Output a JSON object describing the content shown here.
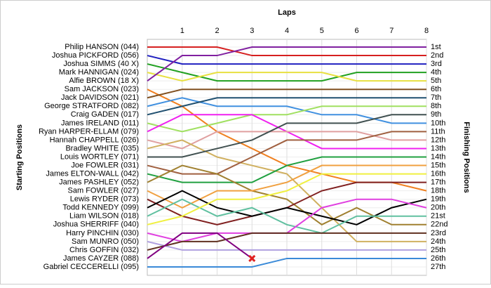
{
  "chart_data": {
    "type": "lap",
    "title": "Laps",
    "y_label_left": "Starting Positions",
    "y_label_right": "Finishing Positions",
    "xlim": [
      0,
      8
    ],
    "xticks": [
      1,
      2,
      3,
      4,
      5,
      6,
      7,
      8
    ],
    "ylim": [
      1,
      27
    ],
    "yticks": [
      1,
      2,
      3,
      4,
      5,
      6,
      7,
      8,
      9,
      10,
      11,
      12,
      13,
      14,
      15,
      16,
      17,
      18,
      19,
      20,
      21,
      22,
      23,
      24,
      25,
      26,
      27
    ],
    "grid": true,
    "finish_labels": [
      "1st",
      "2nd",
      "3rd",
      "4th",
      "5th",
      "6th",
      "7th",
      "8th",
      "9th",
      "10th",
      "11th",
      "12th",
      "13th",
      "14th",
      "15th",
      "16th",
      "17th",
      "18th",
      "19th",
      "20th",
      "21st",
      "22nd",
      "23rd",
      "24th",
      "25th",
      "26th",
      "27th"
    ],
    "series": [
      {
        "name": "Philip HANSON (044)",
        "color": "#d62020",
        "values": [
          1,
          1,
          1,
          2,
          2,
          2,
          2,
          2,
          2
        ]
      },
      {
        "name": "Joshua PICKFORD (056)",
        "color": "#2020c0",
        "values": [
          2,
          3,
          3,
          3,
          3,
          3,
          3,
          3,
          3
        ]
      },
      {
        "name": "Joshua SIMMS (40 X)",
        "color": "#20a020",
        "values": [
          3,
          4,
          5,
          5,
          5,
          5,
          4,
          4,
          4
        ]
      },
      {
        "name": "Mark HANNIGAN (024)",
        "color": "#e8e040",
        "values": [
          4,
          5,
          4,
          4,
          4,
          4,
          5,
          5,
          5
        ]
      },
      {
        "name": "Alfie BROWN (18 X)",
        "color": "#8020a0",
        "values": [
          5,
          2,
          2,
          1,
          1,
          1,
          1,
          1,
          1
        ]
      },
      {
        "name": "Sam JACKSON (023)",
        "color": "#f08020",
        "values": [
          6,
          8,
          11,
          13,
          15,
          16,
          17,
          17,
          18
        ]
      },
      {
        "name": "Jack DAVIDSON (021)",
        "color": "#805020",
        "values": [
          7,
          6,
          6,
          6,
          6,
          6,
          6,
          6,
          6
        ]
      },
      {
        "name": "George STRATFORD (082)",
        "color": "#4090e0",
        "values": [
          8,
          7,
          8,
          8,
          8,
          9,
          9,
          10,
          10
        ]
      },
      {
        "name": "Craig GADEN (017)",
        "color": "#205070",
        "values": [
          9,
          8,
          7,
          7,
          7,
          7,
          7,
          7,
          7
        ]
      },
      {
        "name": "James IRELAND (011)",
        "color": "#a0e060",
        "values": [
          10,
          11,
          10,
          9,
          9,
          8,
          8,
          8,
          8
        ]
      },
      {
        "name": "Ryan HARPER-ELLAM (079)",
        "color": "#f020f0",
        "values": [
          11,
          9,
          9,
          9,
          11,
          13,
          13,
          13,
          13
        ]
      },
      {
        "name": "Hannah CHAPPELL (026)",
        "color": "#e0a0a0",
        "values": [
          12,
          13,
          11,
          11,
          11,
          11,
          11,
          12,
          12
        ]
      },
      {
        "name": "Bradley WHITE (035)",
        "color": "#d0b060",
        "values": [
          13,
          12,
          14,
          15,
          16,
          20,
          24,
          24,
          24
        ]
      },
      {
        "name": "Louis WORTLEY (071)",
        "color": "#405050",
        "values": [
          14,
          14,
          13,
          12,
          10,
          10,
          10,
          9,
          9
        ]
      },
      {
        "name": "Joe FOWLER (031)",
        "color": "#a06040",
        "values": [
          15,
          16,
          16,
          14,
          12,
          12,
          12,
          11,
          11
        ]
      },
      {
        "name": "James ELTON-WALL (042)",
        "color": "#20a040",
        "values": [
          16,
          17,
          17,
          17,
          15,
          14,
          14,
          14,
          14
        ]
      },
      {
        "name": "James PASHLEY (052)",
        "color": "#a08030",
        "values": [
          17,
          15,
          16,
          18,
          19,
          22,
          20,
          22,
          22
        ]
      },
      {
        "name": "Sam FOWLER (027)",
        "color": "#f0a040",
        "values": [
          18,
          20,
          18,
          18,
          17,
          15,
          15,
          15,
          15
        ]
      },
      {
        "name": "Lewis RYDER (073)",
        "color": "#802020",
        "values": [
          19,
          21,
          22,
          21,
          20,
          18,
          17,
          17,
          17
        ]
      },
      {
        "name": "Todd KENNEDY (099)",
        "color": "#000000",
        "values": [
          20,
          18,
          20,
          21,
          20,
          21,
          22,
          20,
          19
        ]
      },
      {
        "name": "Liam WILSON (018)",
        "color": "#60c0a0",
        "values": [
          21,
          19,
          21,
          20,
          22,
          23,
          21,
          21,
          21
        ]
      },
      {
        "name": "Joshua SHERRIFF (040)",
        "color": "#f0f040",
        "values": [
          22,
          21,
          19,
          19,
          18,
          16,
          16,
          16,
          16
        ]
      },
      {
        "name": "Harry PINCHIN (030)",
        "color": "#e040e0",
        "values": [
          23,
          24,
          23,
          23,
          23,
          20,
          19,
          19,
          20
        ]
      },
      {
        "name": "Sam MUNRO (050)",
        "color": "#b0a0e0",
        "values": [
          24,
          25,
          25,
          25,
          25,
          25,
          25,
          25,
          25
        ]
      },
      {
        "name": "Chris GOFFIN (032)",
        "color": "#603020",
        "values": [
          25,
          24,
          24,
          23,
          23,
          23,
          23,
          23,
          23
        ]
      },
      {
        "name": "James CAYZER (088)",
        "color": "#800080",
        "values": [
          26,
          23,
          23,
          26,
          null,
          null,
          null,
          null,
          null
        ]
      },
      {
        "name": "Gabriel CECCERELLI (095)",
        "color": "#3a8ad8",
        "values": [
          27,
          27,
          27,
          27,
          26,
          26,
          26,
          26,
          26
        ]
      }
    ]
  }
}
